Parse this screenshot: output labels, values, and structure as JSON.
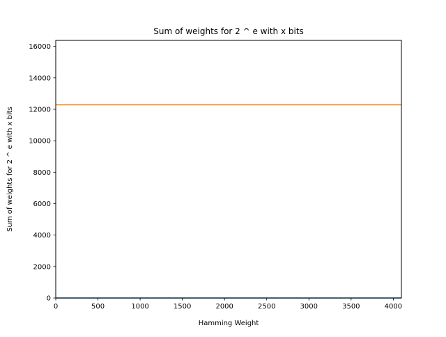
{
  "chart_data": {
    "type": "line",
    "title": "Sum of weights for 2 ^ e with x bits",
    "xlabel": "Hamming Weight",
    "ylabel": "Sum of weights for 2 ^ e with x bits",
    "xlim": [
      0,
      4096
    ],
    "ylim": [
      0,
      16384
    ],
    "xticks": [
      0,
      500,
      1000,
      1500,
      2000,
      2500,
      3000,
      3500,
      4000
    ],
    "yticks": [
      0,
      2000,
      4000,
      6000,
      8000,
      10000,
      12000,
      14000,
      16000
    ],
    "grid": false,
    "series": [
      {
        "color": "#1f77b4",
        "x": [
          0,
          4096
        ],
        "y": [
          0,
          0
        ]
      },
      {
        "color": "#ff7f0e",
        "x": [
          0,
          4096
        ],
        "y": [
          12288,
          12288
        ]
      }
    ]
  }
}
